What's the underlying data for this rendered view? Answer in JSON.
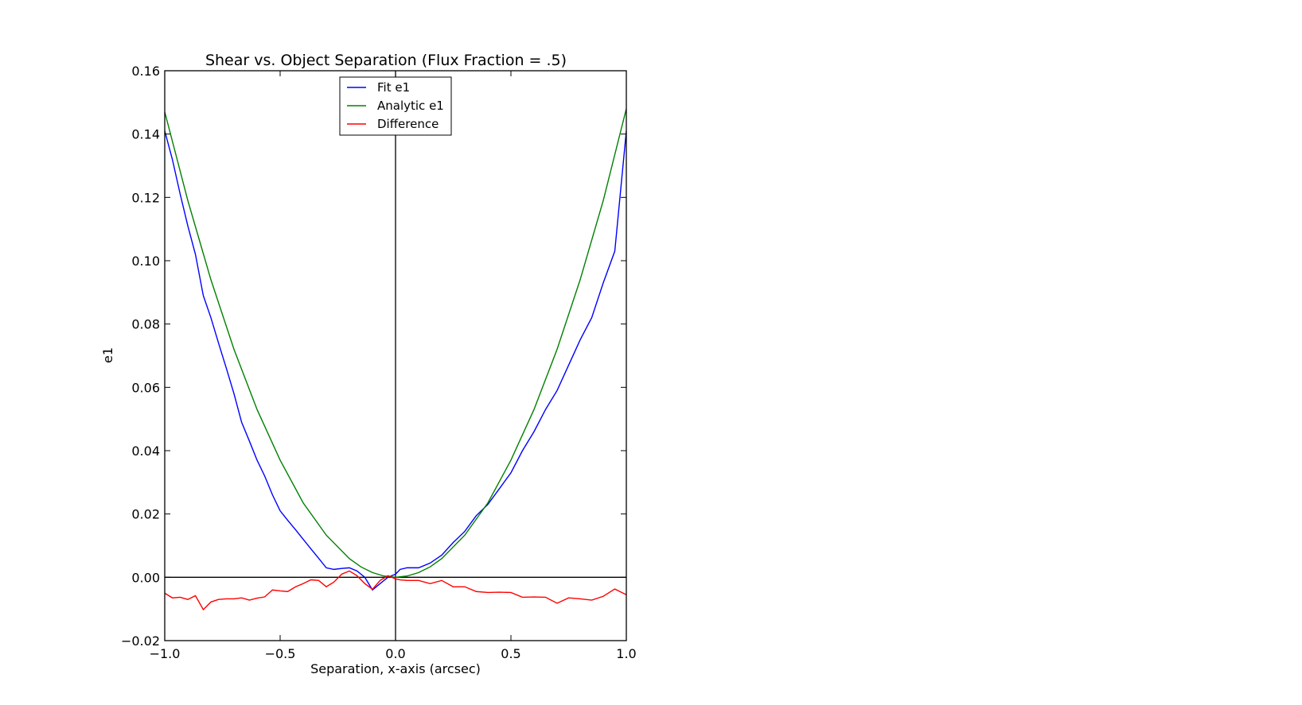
{
  "chart_data": {
    "type": "line",
    "title": "Shear vs. Object Separation (Flux Fraction = .5)",
    "xlabel": "Separation, x-axis (arcsec)",
    "ylabel": "e1",
    "xlim": [
      -1.0,
      1.0
    ],
    "ylim": [
      -0.02,
      0.16
    ],
    "x_ticks": [
      -1.0,
      -0.5,
      0.0,
      0.5,
      1.0
    ],
    "x_tick_labels": [
      "−1.0",
      "−0.5",
      "0.0",
      "0.5",
      "1.0"
    ],
    "y_ticks": [
      -0.02,
      0.0,
      0.02,
      0.04,
      0.06,
      0.08,
      0.1,
      0.12,
      0.14,
      0.16
    ],
    "y_tick_labels": [
      "−0.02",
      "0.00",
      "0.02",
      "0.04",
      "0.06",
      "0.08",
      "0.10",
      "0.12",
      "0.14",
      "0.16"
    ],
    "grid": false,
    "legend_position": "top-center",
    "reference_lines": {
      "x": 0.0,
      "y": 0.0
    },
    "series": [
      {
        "name": "Fit e1",
        "color": "#0000ff",
        "x": [
          -1.0,
          -0.967,
          -0.933,
          -0.9,
          -0.867,
          -0.833,
          -0.8,
          -0.767,
          -0.733,
          -0.7,
          -0.667,
          -0.633,
          -0.6,
          -0.567,
          -0.533,
          -0.5,
          -0.467,
          -0.433,
          -0.4,
          -0.367,
          -0.333,
          -0.3,
          -0.267,
          -0.233,
          -0.2,
          -0.167,
          -0.133,
          -0.1,
          -0.067,
          -0.033,
          0.0,
          0.02,
          0.05,
          0.1,
          0.15,
          0.2,
          0.25,
          0.3,
          0.35,
          0.4,
          0.45,
          0.5,
          0.55,
          0.6,
          0.65,
          0.7,
          0.75,
          0.8,
          0.85,
          0.9,
          0.95,
          1.0
        ],
        "y": [
          0.141,
          0.132,
          0.121,
          0.111,
          0.102,
          0.089,
          0.082,
          0.074,
          0.066,
          0.058,
          0.049,
          0.043,
          0.037,
          0.032,
          0.026,
          0.021,
          0.018,
          0.015,
          0.012,
          0.009,
          0.006,
          0.003,
          0.0025,
          0.0028,
          0.003,
          0.002,
          0.0,
          -0.004,
          -0.002,
          0.0,
          0.001,
          0.0025,
          0.003,
          0.003,
          0.0045,
          0.007,
          0.011,
          0.0145,
          0.0195,
          0.023,
          0.028,
          0.033,
          0.04,
          0.046,
          0.053,
          0.059,
          0.067,
          0.075,
          0.082,
          0.093,
          0.103,
          0.141
        ]
      },
      {
        "name": "Analytic e1",
        "color": "#008000",
        "x": [
          -1.0,
          -0.9,
          -0.8,
          -0.7,
          -0.6,
          -0.5,
          -0.4,
          -0.3,
          -0.2,
          -0.15,
          -0.1,
          -0.05,
          0.0,
          0.05,
          0.1,
          0.15,
          0.2,
          0.3,
          0.4,
          0.5,
          0.6,
          0.7,
          0.8,
          0.9,
          1.0
        ],
        "y": [
          0.147,
          0.119,
          0.094,
          0.072,
          0.053,
          0.037,
          0.0235,
          0.0133,
          0.0059,
          0.0033,
          0.0015,
          0.0004,
          0.0,
          0.0004,
          0.0015,
          0.0033,
          0.0059,
          0.0133,
          0.0235,
          0.037,
          0.053,
          0.072,
          0.094,
          0.119,
          0.148
        ]
      },
      {
        "name": "Difference",
        "color": "#ff0000",
        "x": [
          -1.0,
          -0.967,
          -0.933,
          -0.9,
          -0.867,
          -0.833,
          -0.8,
          -0.767,
          -0.733,
          -0.7,
          -0.667,
          -0.633,
          -0.6,
          -0.567,
          -0.533,
          -0.5,
          -0.467,
          -0.433,
          -0.4,
          -0.367,
          -0.333,
          -0.3,
          -0.267,
          -0.233,
          -0.2,
          -0.167,
          -0.133,
          -0.1,
          -0.067,
          -0.033,
          0.0,
          0.02,
          0.05,
          0.1,
          0.15,
          0.2,
          0.25,
          0.3,
          0.35,
          0.4,
          0.45,
          0.5,
          0.55,
          0.6,
          0.65,
          0.7,
          0.75,
          0.8,
          0.85,
          0.9,
          0.95,
          1.0
        ],
        "y": [
          -0.005,
          -0.0065,
          -0.0063,
          -0.007,
          -0.0058,
          -0.0102,
          -0.0078,
          -0.007,
          -0.0068,
          -0.0068,
          -0.0065,
          -0.0072,
          -0.0066,
          -0.0062,
          -0.004,
          -0.0043,
          -0.0045,
          -0.003,
          -0.002,
          -0.0008,
          -0.001,
          -0.003,
          -0.0015,
          0.001,
          0.002,
          0.0005,
          -0.002,
          -0.0038,
          -0.001,
          0.0005,
          -0.0005,
          -0.0008,
          -0.001,
          -0.001,
          -0.002,
          -0.001,
          -0.003,
          -0.003,
          -0.0045,
          -0.0048,
          -0.0047,
          -0.0048,
          -0.0063,
          -0.0062,
          -0.0063,
          -0.0082,
          -0.0065,
          -0.0068,
          -0.0072,
          -0.006,
          -0.0037,
          -0.0055
        ]
      }
    ]
  }
}
